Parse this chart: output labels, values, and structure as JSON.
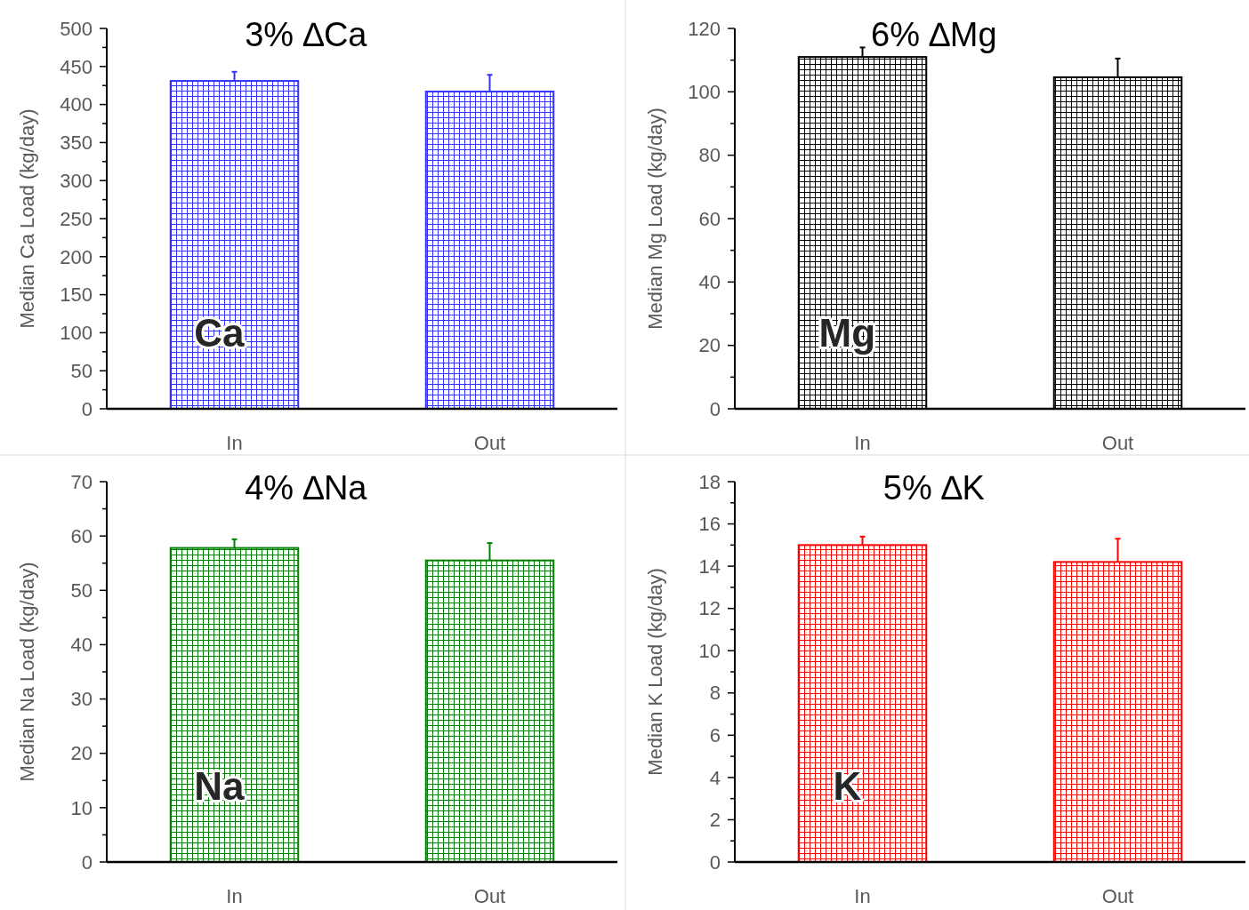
{
  "chart_data": [
    {
      "type": "bar",
      "title": "3% ∆Ca",
      "ylabel": "Median Ca Load (kg/day)",
      "categories": [
        "In",
        "Out"
      ],
      "annotations": [
        "Ca"
      ],
      "series": [
        {
          "color": "#3333ff",
          "values": [
            431,
            417
          ],
          "errors": [
            [
              431,
              443
            ],
            [
              417,
              439
            ]
          ]
        }
      ],
      "ylim": [
        0,
        500
      ],
      "yticks": [
        0,
        {
          "value": 25,
          "label": null
        },
        50,
        {
          "value": 75,
          "label": null
        },
        100,
        {
          "value": 125,
          "label": null
        },
        150,
        {
          "value": 175,
          "label": null
        },
        200,
        {
          "value": 225,
          "label": null
        },
        250,
        {
          "value": 275,
          "label": null
        },
        300,
        {
          "value": 325,
          "label": null
        },
        350,
        {
          "value": 375,
          "label": null
        },
        400,
        {
          "value": 425,
          "label": null
        },
        450,
        {
          "value": 475,
          "label": null
        },
        500
      ],
      "grid": false
    },
    {
      "type": "bar",
      "title": "6% ∆Mg",
      "ylabel": "Median Mg Load (kg/day)",
      "categories": [
        "In",
        "Out"
      ],
      "annotations": [
        "Mg"
      ],
      "series": [
        {
          "color": "#000000",
          "values": [
            111,
            104.6
          ],
          "errors": [
            [
              111,
              114
            ],
            [
              104.6,
              110.5
            ]
          ]
        }
      ],
      "ylim": [
        0,
        120
      ],
      "yticks": [
        0,
        {
          "value": 10,
          "label": null
        },
        20,
        {
          "value": 30,
          "label": null
        },
        40,
        {
          "value": 50,
          "label": null
        },
        60,
        {
          "value": 70,
          "label": null
        },
        80,
        {
          "value": 90,
          "label": null
        },
        100,
        {
          "value": 110,
          "label": null
        },
        120
      ],
      "grid": false
    },
    {
      "type": "bar",
      "title": "4% ∆Na",
      "ylabel": "Median Na Load (kg/day)",
      "categories": [
        "In",
        "Out"
      ],
      "annotations": [
        "Na"
      ],
      "series": [
        {
          "color": "#008000",
          "values": [
            57.8,
            55.5
          ],
          "errors": [
            [
              57.8,
              59.4
            ],
            [
              55.5,
              58.7
            ]
          ]
        }
      ],
      "ylim": [
        0,
        70
      ],
      "yticks": [
        0,
        {
          "value": 5,
          "label": null
        },
        10,
        {
          "value": 15,
          "label": null
        },
        20,
        {
          "value": 25,
          "label": null
        },
        30,
        {
          "value": 35,
          "label": null
        },
        40,
        {
          "value": 45,
          "label": null
        },
        50,
        {
          "value": 55,
          "label": null
        },
        60,
        {
          "value": 65,
          "label": null
        },
        70
      ],
      "grid": false
    },
    {
      "type": "bar",
      "title": "5% ∆K",
      "ylabel": "Median K Load (kg/day)",
      "categories": [
        "In",
        "Out"
      ],
      "annotations": [
        "K"
      ],
      "series": [
        {
          "color": "#ff0000",
          "values": [
            15,
            14.2
          ],
          "errors": [
            [
              15,
              15.4
            ],
            [
              14.2,
              15.3
            ]
          ]
        }
      ],
      "ylim": [
        0,
        18
      ],
      "yticks": [
        0,
        {
          "value": 1,
          "label": null
        },
        2,
        {
          "value": 3,
          "label": null
        },
        4,
        {
          "value": 5,
          "label": null
        },
        6,
        {
          "value": 7,
          "label": null
        },
        8,
        {
          "value": 9,
          "label": null
        },
        10,
        {
          "value": 11,
          "label": null
        },
        12,
        {
          "value": 13,
          "label": null
        },
        14,
        {
          "value": 15,
          "label": null
        },
        16,
        {
          "value": 17,
          "label": null
        },
        18
      ],
      "grid": false
    }
  ]
}
